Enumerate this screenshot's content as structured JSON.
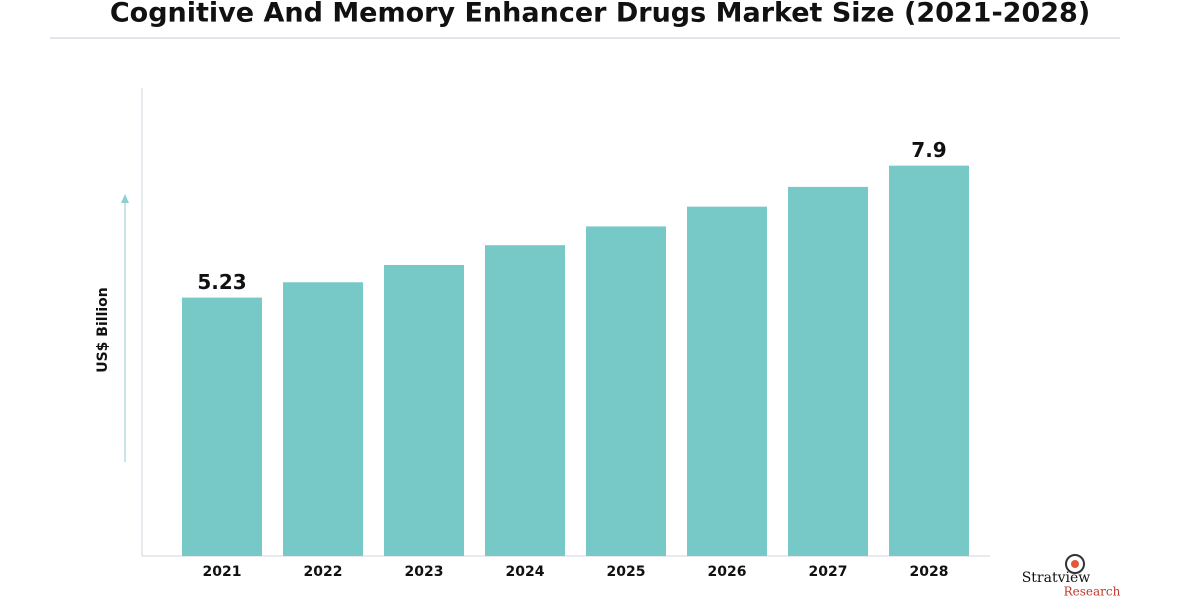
{
  "chart_data": {
    "type": "bar",
    "title": "Cognitive And Memory Enhancer Drugs Market Size (2021-2028)",
    "y_label": "US$ Billion",
    "categories": [
      "2021",
      "2022",
      "2023",
      "2024",
      "2025",
      "2026",
      "2027",
      "2028"
    ],
    "values": [
      5.23,
      5.54,
      5.89,
      6.29,
      6.67,
      7.07,
      7.47,
      7.9
    ],
    "value_labels": [
      "5.23",
      null,
      null,
      null,
      null,
      null,
      null,
      "7.9"
    ],
    "color": "#76c9c7",
    "ylim": [
      0,
      8.5
    ]
  },
  "logo": {
    "name": "Stratview",
    "tagline": "Research"
  }
}
